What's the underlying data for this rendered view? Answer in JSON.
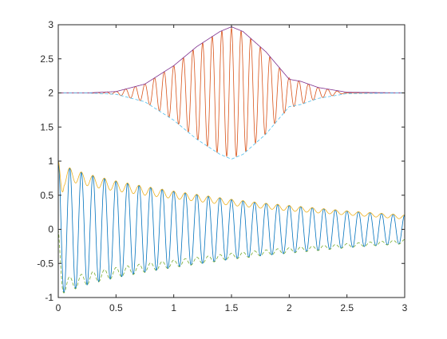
{
  "chart_data": {
    "type": "line",
    "title": "",
    "xlabel": "",
    "ylabel": "",
    "xlim": [
      0,
      3
    ],
    "ylim": [
      -1,
      3
    ],
    "x_ticks": [
      "0",
      "0.5",
      "1",
      "1.5",
      "2",
      "2.5",
      "3"
    ],
    "y_ticks": [
      "-1",
      "-0.5",
      "0",
      "0.5",
      "1",
      "1.5",
      "2",
      "2.5",
      "3"
    ],
    "x_tick_values": [
      0,
      0.5,
      1,
      1.5,
      2,
      2.5,
      3
    ],
    "y_tick_values": [
      -1,
      -0.5,
      0,
      0.5,
      1,
      1.5,
      2,
      2.5,
      3
    ],
    "grid": false,
    "legend": "none",
    "series": [
      {
        "color": "#0072bd",
        "style": "solid",
        "x": [
          0,
          0.05,
          0.1,
          0.2,
          0.3,
          0.5,
          0.75,
          1.0,
          1.25,
          1.5,
          1.75,
          2.0,
          2.25,
          2.5,
          2.75,
          3.0
        ],
        "y_upper": [
          1.0,
          0.93,
          0.9,
          0.84,
          0.79,
          0.71,
          0.63,
          0.56,
          0.5,
          0.44,
          0.39,
          0.35,
          0.31,
          0.27,
          0.24,
          0.21
        ],
        "y_lower": [
          -1.0,
          -0.93,
          -0.9,
          -0.84,
          -0.79,
          -0.71,
          -0.63,
          -0.56,
          -0.5,
          -0.44,
          -0.39,
          -0.35,
          -0.31,
          -0.27,
          -0.24,
          -0.21
        ],
        "oscillations_per_unit": 10
      },
      {
        "color": "#edb120",
        "style": "solid",
        "x": [
          0,
          0.05,
          0.1,
          0.2,
          0.3,
          0.5,
          0.75,
          1.0,
          1.25,
          1.5,
          1.75,
          2.0,
          2.25,
          2.5,
          2.75,
          3.0
        ],
        "y_upper": [
          1.0,
          0.93,
          0.9,
          0.84,
          0.79,
          0.71,
          0.63,
          0.56,
          0.5,
          0.44,
          0.39,
          0.35,
          0.31,
          0.27,
          0.24,
          0.21
        ],
        "y_lower": [
          0.0,
          0.64,
          0.7,
          0.66,
          0.62,
          0.56,
          0.5,
          0.45,
          0.4,
          0.35,
          0.31,
          0.27,
          0.24,
          0.21,
          0.18,
          0.15
        ],
        "oscillations_per_unit": 10
      },
      {
        "color": "#77ac30",
        "style": "dashed",
        "x": [
          0,
          0.05,
          0.1,
          0.2,
          0.3,
          0.5,
          0.75,
          1.0,
          1.25,
          1.5,
          1.75,
          2.0,
          2.25,
          2.5,
          2.75,
          3.0
        ],
        "y_upper": [
          0.0,
          -0.64,
          -0.7,
          -0.66,
          -0.62,
          -0.56,
          -0.5,
          -0.45,
          -0.4,
          -0.35,
          -0.31,
          -0.27,
          -0.24,
          -0.21,
          -0.18,
          -0.15
        ],
        "y_lower": [
          -1.0,
          -0.93,
          -0.9,
          -0.84,
          -0.79,
          -0.71,
          -0.63,
          -0.56,
          -0.5,
          -0.44,
          -0.39,
          -0.35,
          -0.31,
          -0.27,
          -0.24,
          -0.21
        ],
        "oscillations_per_unit": 10
      },
      {
        "color": "#d95319",
        "style": "solid",
        "x": [
          0,
          0.25,
          0.5,
          0.75,
          1.0,
          1.2,
          1.4,
          1.5,
          1.6,
          1.8,
          1.9,
          2.0,
          2.1,
          2.25,
          2.5,
          3.0
        ],
        "y_upper": [
          2.0,
          2.0,
          2.02,
          2.13,
          2.4,
          2.68,
          2.9,
          2.95,
          2.9,
          2.6,
          2.4,
          2.22,
          2.17,
          2.08,
          2.0,
          2.0
        ],
        "y_lower": [
          2.0,
          2.0,
          1.98,
          1.87,
          1.6,
          1.32,
          1.1,
          1.05,
          1.1,
          1.4,
          1.6,
          1.78,
          1.83,
          1.92,
          2.0,
          2.0
        ],
        "oscillations_per_unit": 12
      },
      {
        "color": "#7e2f8e",
        "style": "solid",
        "x": [
          0,
          0.25,
          0.5,
          0.75,
          1.0,
          1.2,
          1.4,
          1.5,
          1.6,
          1.8,
          1.9,
          2.0,
          2.1,
          2.25,
          2.5,
          3.0
        ],
        "y": [
          2.0,
          2.0,
          2.02,
          2.13,
          2.4,
          2.68,
          2.9,
          2.97,
          2.9,
          2.6,
          2.4,
          2.2,
          2.17,
          2.08,
          2.01,
          2.0
        ]
      },
      {
        "color": "#4dbeee",
        "style": "dashed",
        "x": [
          0,
          0.25,
          0.5,
          0.75,
          1.0,
          1.2,
          1.4,
          1.5,
          1.6,
          1.8,
          1.9,
          2.0,
          2.1,
          2.25,
          2.5,
          3.0
        ],
        "y": [
          2.0,
          2.0,
          1.98,
          1.87,
          1.6,
          1.32,
          1.1,
          1.03,
          1.1,
          1.4,
          1.6,
          1.8,
          1.83,
          1.92,
          1.99,
          2.0
        ]
      }
    ]
  }
}
